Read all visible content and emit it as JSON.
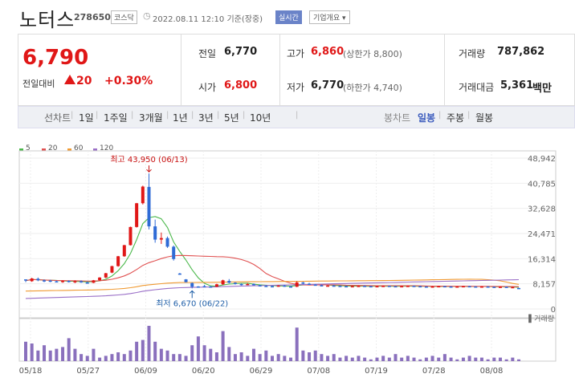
{
  "header": {
    "name": "노터스",
    "code": "278650",
    "market": "코스닥",
    "datetime": "2022.08.11 12:10",
    "basis": "기준(장중)",
    "realtime_label": "실시간",
    "company_info_label": "기업개요"
  },
  "summary": {
    "price": "6,790",
    "change_label": "전일대비",
    "change": "20",
    "change_pct": "+0.30%",
    "prev_label": "전일",
    "prev": "6,770",
    "open_label": "시가",
    "open": "6,800",
    "high_label": "고가",
    "high": "6,860",
    "upper_limit": "(상한가 8,800)",
    "low_label": "저가",
    "low": "6,770",
    "lower_limit": "(하한가 4,740)",
    "volume_label": "거래량",
    "volume": "787,862",
    "trade_value_label": "거래대금",
    "trade_value": "5,361",
    "trade_value_unit": "백만"
  },
  "period_tabs": [
    "선차트",
    "1일",
    "1주일",
    "3개월",
    "1년",
    "3년",
    "5년",
    "10년"
  ],
  "candle_tabs": [
    "봉차트",
    "일봉",
    "주봉",
    "월봉"
  ],
  "selected_candle": "일봉",
  "colors": {
    "up": "#e01717",
    "down": "#2f6bd6",
    "ma5": "#4cb84c",
    "ma20": "#e05050",
    "ma60": "#f09a32",
    "ma120": "#9a6fc7",
    "volume": "#8a70bd"
  },
  "chart_data": {
    "type": "candlestick",
    "legend": [
      "5",
      "20",
      "60",
      "120"
    ],
    "y_ticks": [
      "48,942",
      "40,785",
      "32,628",
      "24,471",
      "16,314",
      "8,157",
      "0"
    ],
    "ylim": [
      0,
      48942
    ],
    "x_ticks": [
      "05/18",
      "05/27",
      "06/09",
      "06/20",
      "06/29",
      "07/08",
      "07/19",
      "07/28",
      "08/08"
    ],
    "high_annotation": "최고 43,950 (06/13)",
    "low_annotation": "최저 6,670 (06/22)",
    "volume_label": "거래량",
    "candles": [
      [
        9600,
        9600,
        8700,
        9200
      ],
      [
        9000,
        10100,
        8800,
        9900
      ],
      [
        9800,
        10200,
        9000,
        9300
      ],
      [
        9300,
        9600,
        8700,
        9200
      ],
      [
        9200,
        9500,
        8700,
        9000
      ],
      [
        9000,
        9200,
        8600,
        8900
      ],
      [
        8900,
        9300,
        8500,
        9100
      ],
      [
        9100,
        9300,
        8600,
        8800
      ],
      [
        8800,
        9300,
        8400,
        9000
      ],
      [
        9000,
        9300,
        8500,
        8600
      ],
      [
        8600,
        8900,
        8300,
        8500
      ],
      [
        8500,
        9400,
        8400,
        9300
      ],
      [
        9300,
        10300,
        9100,
        10200
      ],
      [
        10200,
        11700,
        10000,
        11600
      ],
      [
        11800,
        14000,
        11600,
        13900
      ],
      [
        13900,
        17200,
        13700,
        17100
      ],
      [
        17100,
        20800,
        16900,
        20700
      ],
      [
        20700,
        26700,
        20600,
        26600
      ],
      [
        26600,
        34400,
        26400,
        34300
      ],
      [
        34300,
        40000,
        33900,
        39700
      ],
      [
        39600,
        43950,
        25800,
        26800
      ],
      [
        26800,
        29000,
        21500,
        22500
      ],
      [
        22500,
        24800,
        21100,
        23000
      ],
      [
        23000,
        23500,
        19800,
        20200
      ],
      [
        20200,
        20600,
        15700,
        16200
      ],
      [
        11500,
        11700,
        11100,
        11300
      ],
      [
        9600,
        9700,
        8600,
        8700
      ],
      [
        8400,
        8600,
        6670,
        7200
      ],
      [
        7300,
        7400,
        6900,
        7100
      ],
      [
        7400,
        7800,
        7100,
        7300
      ],
      [
        7300,
        7500,
        7100,
        7200
      ],
      [
        7200,
        8200,
        7100,
        8000
      ],
      [
        8000,
        9500,
        7800,
        9300
      ],
      [
        9100,
        9700,
        8300,
        8500
      ],
      [
        8500,
        8700,
        7900,
        8100
      ],
      [
        8100,
        8300,
        7600,
        7800
      ],
      [
        7800,
        8400,
        7700,
        8100
      ],
      [
        8100,
        8300,
        7600,
        7700
      ],
      [
        7700,
        7900,
        7300,
        7500
      ],
      [
        7500,
        7700,
        7200,
        7400
      ],
      [
        7400,
        7600,
        7100,
        7300
      ],
      [
        7300,
        7700,
        7200,
        7600
      ],
      [
        7600,
        7800,
        7200,
        7300
      ],
      [
        7300,
        7500,
        7000,
        7200
      ],
      [
        7200,
        9000,
        7100,
        8600
      ],
      [
        8600,
        8800,
        8000,
        8200
      ],
      [
        8200,
        8500,
        7800,
        7900
      ],
      [
        7900,
        8100,
        7600,
        7700
      ],
      [
        7700,
        7900,
        7400,
        7500
      ],
      [
        7500,
        7700,
        7300,
        7600
      ],
      [
        7600,
        7800,
        7400,
        7500
      ],
      [
        7500,
        7600,
        7300,
        7400
      ],
      [
        7400,
        7600,
        7200,
        7300
      ],
      [
        7300,
        7500,
        7200,
        7400
      ],
      [
        7400,
        7600,
        7300,
        7500
      ],
      [
        7500,
        7700,
        7300,
        7400
      ],
      [
        7400,
        7500,
        7200,
        7300
      ],
      [
        7300,
        7500,
        7200,
        7400
      ],
      [
        7400,
        7600,
        7300,
        7500
      ],
      [
        7500,
        7600,
        7300,
        7400
      ],
      [
        7400,
        7500,
        7200,
        7300
      ],
      [
        7300,
        7500,
        7200,
        7400
      ],
      [
        7400,
        7600,
        7300,
        7500
      ],
      [
        7500,
        7600,
        7300,
        7400
      ],
      [
        7400,
        7500,
        7200,
        7300
      ],
      [
        7300,
        7400,
        7100,
        7200
      ],
      [
        7200,
        7400,
        7100,
        7300
      ],
      [
        7300,
        7500,
        7200,
        7400
      ],
      [
        7400,
        7500,
        7200,
        7300
      ],
      [
        7300,
        7400,
        7100,
        7200
      ],
      [
        7200,
        7400,
        7100,
        7300
      ],
      [
        7300,
        7500,
        7200,
        7400
      ],
      [
        7400,
        7500,
        7200,
        7300
      ],
      [
        7300,
        7400,
        7100,
        7200
      ],
      [
        7200,
        7400,
        7100,
        7300
      ],
      [
        7300,
        7400,
        7100,
        7200
      ],
      [
        7200,
        7300,
        7000,
        7100
      ],
      [
        7100,
        7300,
        7000,
        7200
      ],
      [
        7200,
        7300,
        7000,
        7100
      ],
      [
        7100,
        7200,
        7000,
        7100
      ],
      [
        6800,
        6860,
        6770,
        6790
      ]
    ],
    "volumes": [
      0.55,
      0.5,
      0.3,
      0.45,
      0.3,
      0.35,
      0.4,
      0.65,
      0.35,
      0.2,
      0.15,
      0.35,
      0.1,
      0.15,
      0.2,
      0.25,
      0.2,
      0.3,
      0.55,
      0.6,
      1.0,
      0.55,
      0.35,
      0.3,
      0.2,
      0.2,
      0.15,
      0.45,
      0.7,
      0.45,
      0.35,
      0.25,
      0.85,
      0.4,
      0.2,
      0.25,
      0.15,
      0.35,
      0.2,
      0.3,
      0.15,
      0.2,
      0.15,
      0.1,
      0.95,
      0.3,
      0.25,
      0.3,
      0.2,
      0.15,
      0.2,
      0.1,
      0.15,
      0.1,
      0.15,
      0.1,
      0.05,
      0.1,
      0.15,
      0.1,
      0.2,
      0.1,
      0.15,
      0.1,
      0.05,
      0.1,
      0.15,
      0.1,
      0.2,
      0.1,
      0.05,
      0.1,
      0.15,
      0.1,
      0.1,
      0.05,
      0.1,
      0.1,
      0.05,
      0.1,
      0.05
    ]
  }
}
